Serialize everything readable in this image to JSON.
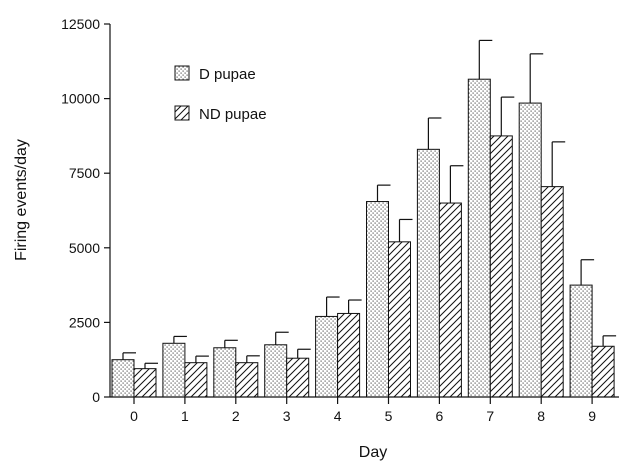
{
  "chart_data": {
    "type": "bar",
    "title": "",
    "xlabel": "Day",
    "ylabel": "Firing events/day",
    "categories": [
      "0",
      "1",
      "2",
      "3",
      "4",
      "5",
      "6",
      "7",
      "8",
      "9"
    ],
    "ylim": [
      0,
      12500
    ],
    "yticks": [
      0,
      2500,
      5000,
      7500,
      10000,
      12500
    ],
    "grid": false,
    "legend_position": "top-left",
    "series": [
      {
        "name": "D pupae",
        "pattern": "dotted",
        "values": [
          1250,
          1800,
          1650,
          1750,
          2700,
          6550,
          8300,
          10650,
          9850,
          3750
        ],
        "error": [
          230,
          230,
          250,
          420,
          650,
          550,
          1050,
          1300,
          1650,
          850
        ]
      },
      {
        "name": "ND pupae",
        "pattern": "hatched",
        "values": [
          950,
          1150,
          1150,
          1300,
          2800,
          5200,
          6500,
          8750,
          7050,
          1700
        ],
        "error": [
          180,
          220,
          230,
          300,
          450,
          750,
          1250,
          1300,
          1500,
          350
        ]
      }
    ],
    "colors": {
      "ink": "#111111",
      "fill": "#ffffff",
      "dot": "#555555"
    }
  }
}
